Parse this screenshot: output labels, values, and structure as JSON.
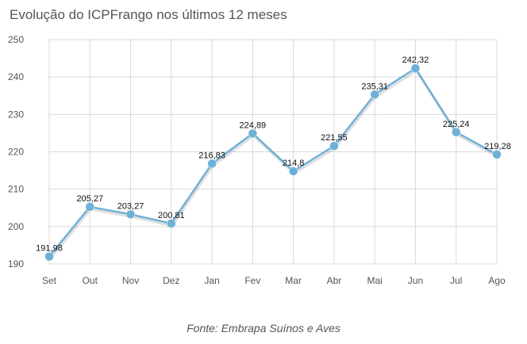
{
  "title": "Evolução do ICPFrango nos últimos 12 meses",
  "source": "Fonte: Embrapa Suínos e Aves",
  "colors": {
    "line": "#6fb0d6",
    "marker": "#6fb0d6",
    "grid": "#d9d9d9",
    "axis_text": "#555555",
    "label_text": "#111111"
  },
  "chart_data": {
    "type": "line",
    "title": "Evolução do ICPFrango nos últimos 12 meses",
    "categories": [
      "Set",
      "Out",
      "Nov",
      "Dez",
      "Jan",
      "Fev",
      "Mar",
      "Abr",
      "Mai",
      "Jun",
      "Jul",
      "Ago"
    ],
    "values": [
      191.98,
      205.27,
      203.27,
      200.81,
      216.83,
      224.89,
      214.8,
      221.55,
      235.31,
      242.32,
      225.24,
      219.28
    ],
    "value_labels": [
      "191,98",
      "205,27",
      "203,27",
      "200,81",
      "216,83",
      "224,89",
      "214,8",
      "221,55",
      "235,31",
      "242,32",
      "225,24",
      "219,28"
    ],
    "y_ticks": [
      "250",
      "240",
      "230",
      "220",
      "210",
      "200",
      "190"
    ],
    "ylim": [
      190,
      250
    ],
    "grid": true,
    "legend": "none"
  }
}
